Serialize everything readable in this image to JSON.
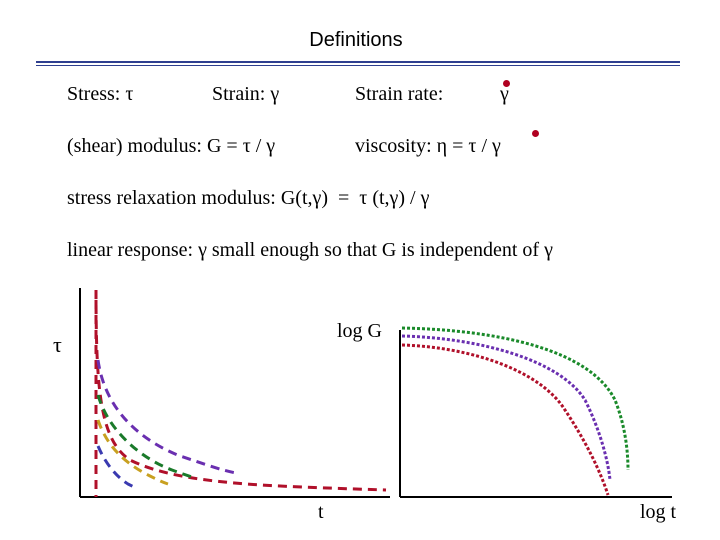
{
  "slide": {
    "title": "Definitions",
    "stress_label": "Stress: τ",
    "strain_label": "Strain: γ",
    "strain_rate_label": "Strain rate:",
    "strain_rate_symbol": "γ",
    "modulus_def": "(shear) modulus: G = τ / γ",
    "viscosity_def": "viscosity: η = τ / γ",
    "relaxation_def": "stress relaxation modulus: G(t,γ)  =  τ (t,γ) / γ",
    "linear_response_def": "linear response: γ small enough so that G is independent of γ"
  },
  "left_plot": {
    "ylabel": "τ",
    "xlabel": "t",
    "colors": [
      "#b0102a",
      "#6a2fb0",
      "#1a7a2a",
      "#c8a020",
      "#3a3ab0"
    ]
  },
  "right_plot": {
    "ylabel": "log G",
    "xlabel": "log t",
    "colors": [
      "#1a8a2a",
      "#6a2fb0",
      "#b0102a"
    ]
  }
}
